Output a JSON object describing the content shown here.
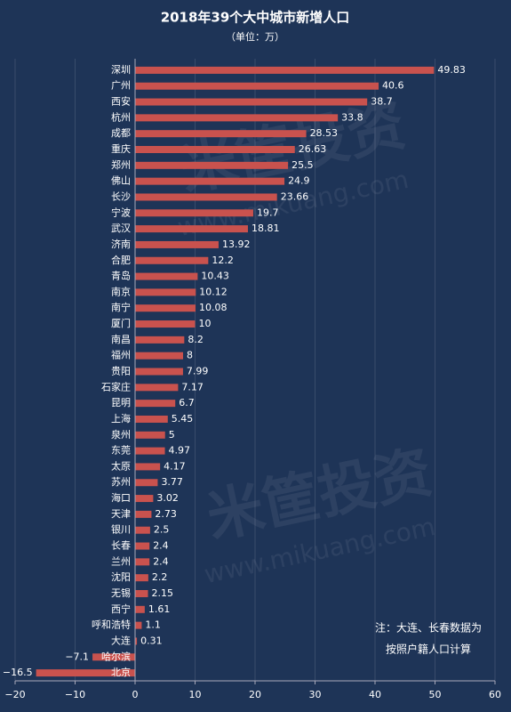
{
  "chart_data": {
    "type": "bar",
    "orientation": "horizontal",
    "title": "2018年39个大中城市新增人口",
    "subtitle": "（单位：万）",
    "categories": [
      "深圳",
      "广州",
      "西安",
      "杭州",
      "成都",
      "重庆",
      "郑州",
      "佛山",
      "长沙",
      "宁波",
      "武汉",
      "济南",
      "合肥",
      "青岛",
      "南京",
      "南宁",
      "厦门",
      "南昌",
      "福州",
      "贵阳",
      "石家庄",
      "昆明",
      "上海",
      "泉州",
      "东莞",
      "太原",
      "苏州",
      "海口",
      "天津",
      "银川",
      "长春",
      "兰州",
      "沈阳",
      "无锡",
      "西宁",
      "呼和浩特",
      "大连",
      "哈尔滨",
      "北京"
    ],
    "values": [
      49.83,
      40.6,
      38.7,
      33.8,
      28.53,
      26.63,
      25.5,
      24.9,
      23.66,
      19.7,
      18.81,
      13.92,
      12.2,
      10.43,
      10.12,
      10.08,
      10,
      8.2,
      8,
      7.99,
      7.17,
      6.7,
      5.45,
      5,
      4.97,
      4.17,
      3.77,
      3.02,
      2.73,
      2.5,
      2.4,
      2.4,
      2.2,
      2.15,
      1.61,
      1.1,
      0.31,
      -7.1,
      -16.5
    ],
    "value_labels": [
      "49.83",
      "40.6",
      "38.7",
      "33.8",
      "28.53",
      "26.63",
      "25.5",
      "24.9",
      "23.66",
      "19.7",
      "18.81",
      "13.92",
      "12.2",
      "10.43",
      "10.12",
      "10.08",
      "10",
      "8.2",
      "8",
      "7.99",
      "7.17",
      "6.7",
      "5.45",
      "5",
      "4.97",
      "4.17",
      "3.77",
      "3.02",
      "2.73",
      "2.5",
      "2.4",
      "2.4",
      "2.2",
      "2.15",
      "1.61",
      "1.1",
      "0.31",
      "−7.1",
      "−16.5"
    ],
    "color": "#c9524e",
    "xlim": [
      -20,
      60
    ],
    "xticks": [
      {
        "value": -20,
        "label": "−20"
      },
      {
        "value": -10,
        "label": "−10"
      },
      0,
      10,
      20,
      30,
      40,
      50,
      60
    ],
    "grid": true,
    "note": [
      "注：大连、长春数据为",
      "按照户籍人口计算"
    ],
    "watermark": [
      "米筐投资",
      "www.mikuang.com"
    ]
  }
}
